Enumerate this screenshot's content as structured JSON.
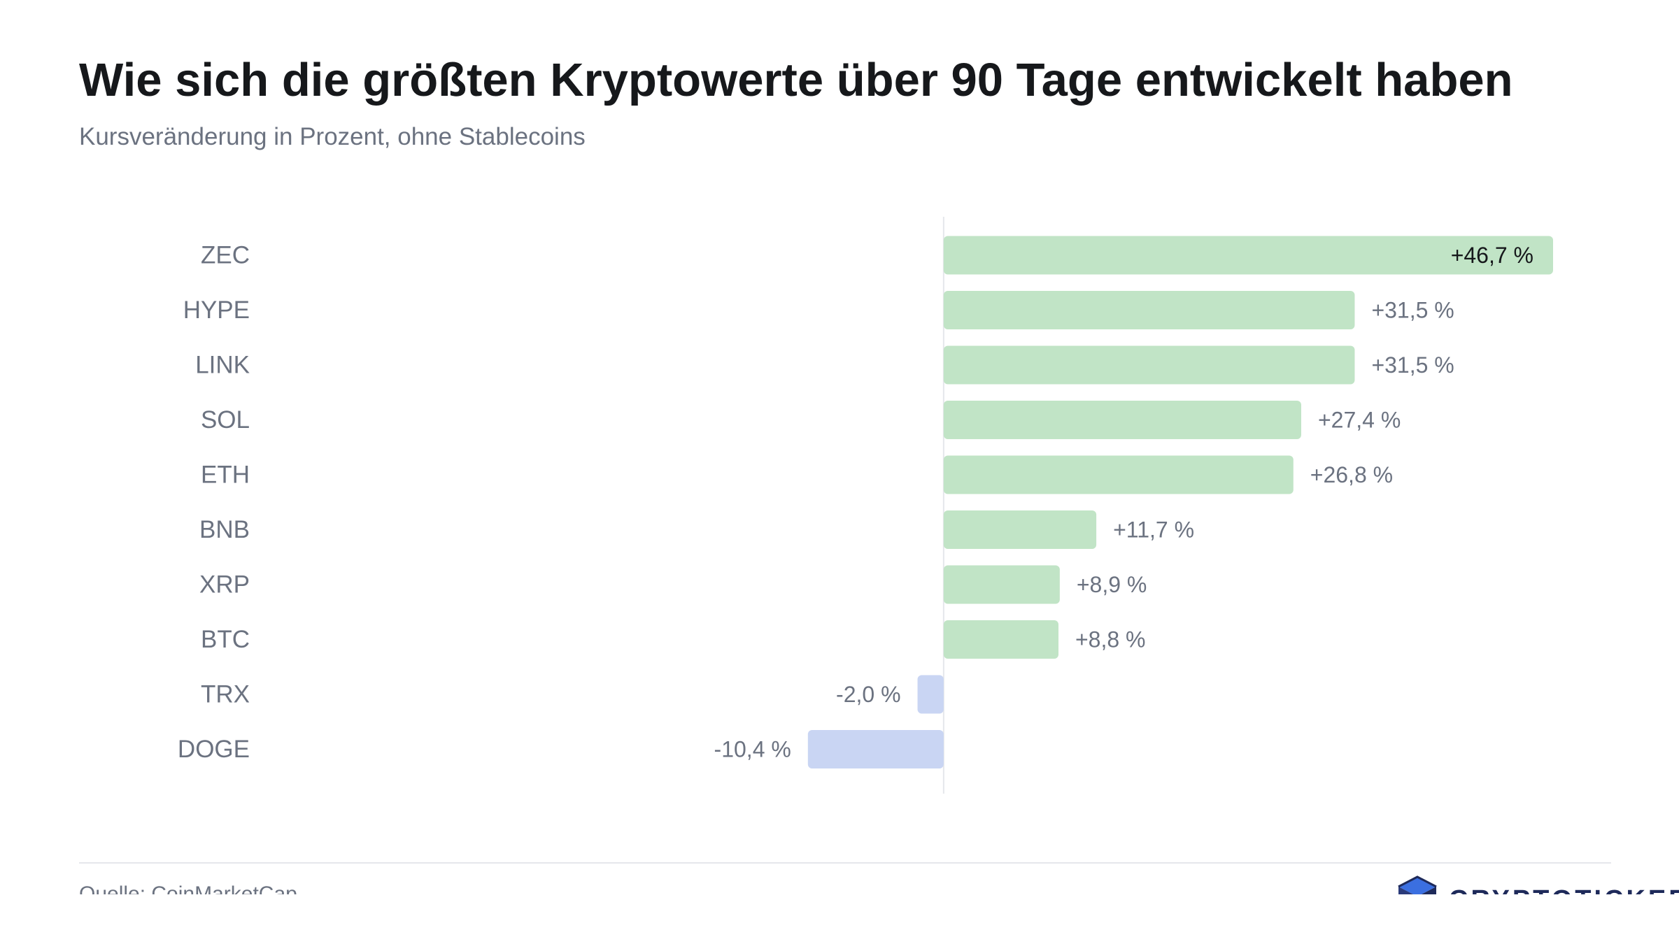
{
  "chart_data": {
    "type": "bar",
    "orientation": "horizontal",
    "title": "Wie sich die größten Kryptowerte über 90 Tage entwickelt haben",
    "subtitle": "Kursveränderung in Prozent, ohne Stablecoins",
    "categories": [
      "ZEC",
      "HYPE",
      "LINK",
      "SOL",
      "ETH",
      "BNB",
      "XRP",
      "BTC",
      "TRX",
      "DOGE"
    ],
    "values": [
      46.7,
      31.5,
      31.5,
      27.4,
      26.8,
      11.7,
      8.9,
      8.8,
      -2.0,
      -10.4
    ],
    "value_labels": [
      "+46,7 %",
      "+31,5 %",
      "+31,5 %",
      "+27,4 %",
      "+26,8 %",
      "+11,7 %",
      "+8,9 %",
      "+8,8 %",
      "-2,0 %",
      "-10,4 %"
    ],
    "xlim": [
      -51.4,
      46.7
    ],
    "grid": false,
    "colors": {
      "positive": "#c1e4c6",
      "negative": "#c9d5f3",
      "zero_line": "#e5e7eb"
    }
  },
  "footer": {
    "source": "Quelle: CoinMarketCap",
    "logo_text": "CRYPTOTICKER.IO"
  }
}
